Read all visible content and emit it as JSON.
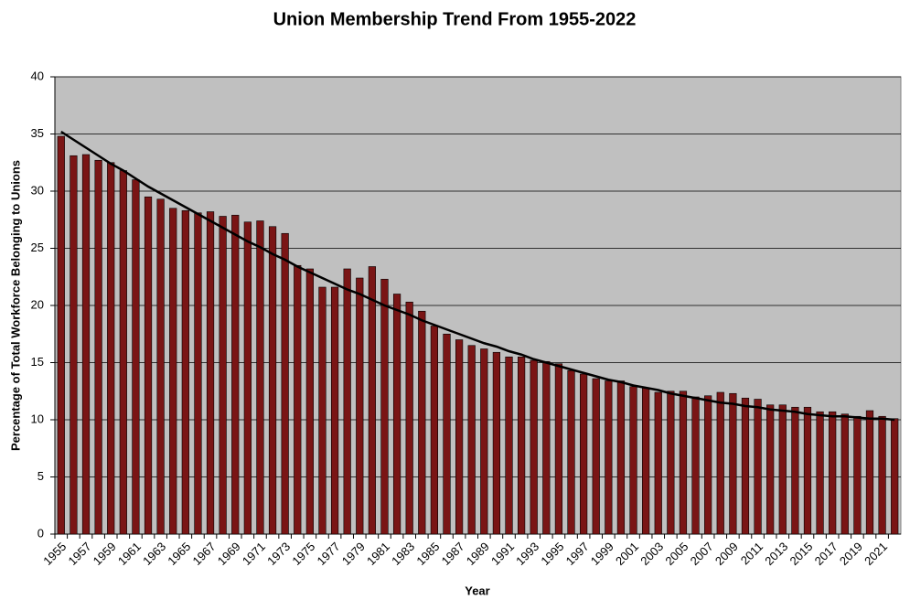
{
  "chart_data": {
    "type": "bar",
    "title": "Union Membership Trend From 1955-2022",
    "x_label": "Year",
    "y_label": "Percentage of Total Workforce Belonging to Unions",
    "categories": [
      "1955",
      null,
      "1957",
      null,
      "1959",
      null,
      "1961",
      null,
      "1963",
      null,
      "1965",
      null,
      "1967",
      null,
      "1969",
      null,
      "1971",
      null,
      "1973",
      null,
      "1975",
      null,
      "1977",
      null,
      "1979",
      null,
      "1981",
      null,
      "1983",
      null,
      "1985",
      null,
      "1987",
      null,
      "1989",
      null,
      "1991",
      null,
      "1993",
      null,
      "1995",
      null,
      "1997",
      null,
      "1999",
      null,
      "2001",
      null,
      "2003",
      null,
      "2005",
      null,
      "2007",
      null,
      "2009",
      null,
      "2011",
      null,
      "2013",
      null,
      "2015",
      null,
      "2017",
      null,
      "2019",
      null,
      "2021",
      null
    ],
    "values": [
      34.8,
      33.1,
      33.2,
      32.7,
      32.5,
      31.8,
      31.0,
      29.5,
      29.3,
      28.5,
      28.3,
      28.1,
      28.2,
      27.8,
      27.9,
      27.3,
      27.4,
      26.9,
      26.3,
      23.5,
      23.2,
      21.6,
      21.6,
      23.2,
      22.4,
      23.4,
      22.3,
      21.0,
      20.3,
      19.5,
      18.2,
      17.5,
      17.0,
      16.5,
      16.2,
      15.9,
      15.5,
      15.5,
      15.2,
      15.1,
      14.9,
      14.3,
      14.0,
      13.6,
      13.4,
      13.4,
      12.9,
      12.8,
      12.4,
      12.5,
      12.5,
      12.0,
      12.1,
      12.4,
      12.3,
      11.9,
      11.8,
      11.3,
      11.3,
      11.1,
      11.1,
      10.7,
      10.7,
      10.5,
      10.3,
      10.8,
      10.3,
      10.1
    ],
    "trend": [
      35.2,
      34.5,
      33.8,
      33.1,
      32.4,
      31.8,
      31.1,
      30.4,
      29.8,
      29.2,
      28.6,
      28.0,
      27.4,
      26.8,
      26.2,
      25.6,
      25.1,
      24.5,
      24.0,
      23.4,
      22.9,
      22.4,
      21.9,
      21.4,
      21.0,
      20.5,
      20.0,
      19.6,
      19.2,
      18.7,
      18.3,
      17.9,
      17.5,
      17.1,
      16.7,
      16.4,
      16.0,
      15.7,
      15.3,
      15.0,
      14.7,
      14.4,
      14.1,
      13.8,
      13.5,
      13.3,
      13.0,
      12.8,
      12.6,
      12.3,
      12.1,
      11.9,
      11.7,
      11.5,
      11.4,
      11.2,
      11.1,
      10.9,
      10.8,
      10.7,
      10.5,
      10.4,
      10.3,
      10.3,
      10.2,
      10.1,
      10.1,
      10.0
    ],
    "color": "#7a1515",
    "trend_color": "#000000",
    "ylim": [
      0,
      40
    ],
    "yticks": [
      0,
      5,
      10,
      15,
      20,
      25,
      30,
      35,
      40
    ],
    "grid": true
  }
}
